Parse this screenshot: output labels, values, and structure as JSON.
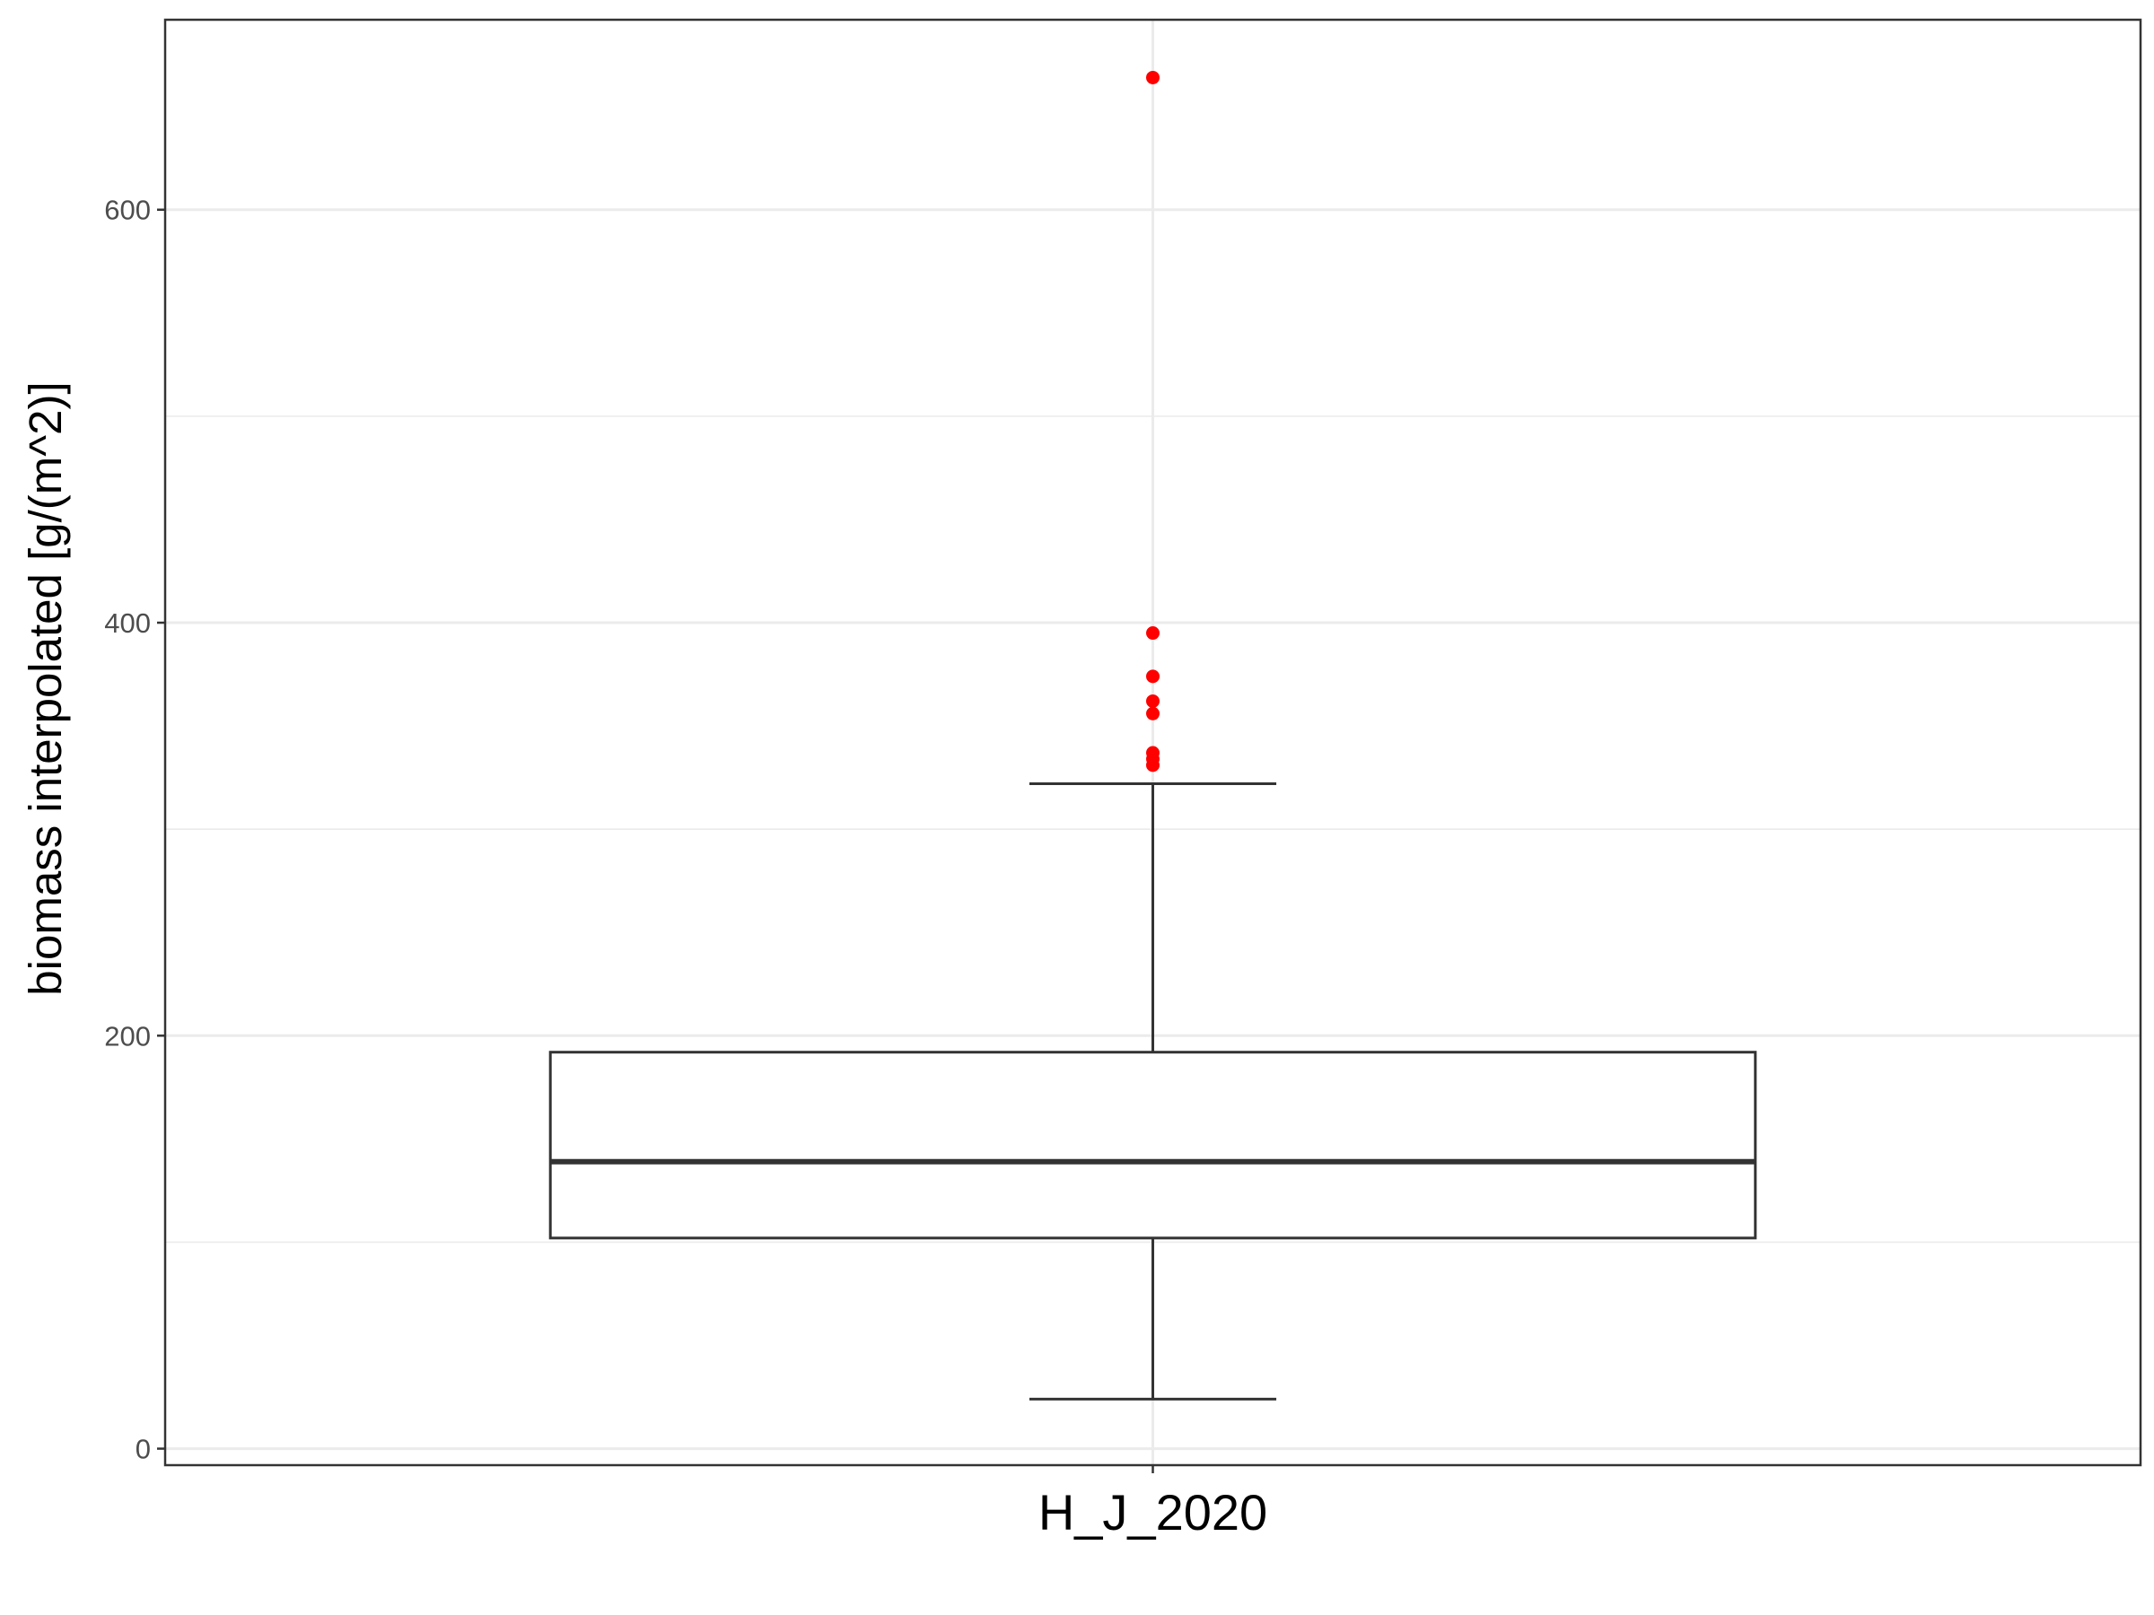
{
  "chart_data": {
    "type": "boxplot",
    "title": "",
    "xlabel": "",
    "ylabel": "biomass interpolated [g/(m^2)]",
    "categories": [
      "H_J_2020"
    ],
    "ylim": [
      -8,
      692
    ],
    "y_ticks": [
      0,
      200,
      400,
      600
    ],
    "y_tick_labels": [
      "0",
      "200",
      "400",
      "600"
    ],
    "y_minor_ticks": [
      100,
      300,
      500
    ],
    "grid": true,
    "boxes": [
      {
        "category": "H_J_2020",
        "lower_whisker": 24,
        "q1": 102,
        "median": 139,
        "q3": 192,
        "upper_whisker": 322,
        "outliers": [
          331,
          334,
          337,
          356,
          362,
          374,
          395,
          664
        ]
      }
    ],
    "colors": {
      "outlier": "#ff0000",
      "box_stroke": "#333333",
      "grid": "#ebebeb",
      "panel_border": "#333333",
      "background": "#ffffff"
    }
  }
}
